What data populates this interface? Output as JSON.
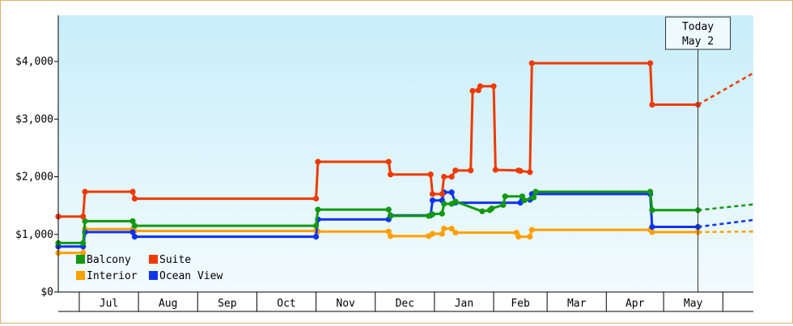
{
  "chart_data": {
    "type": "line",
    "title": "",
    "xlabel": "",
    "ylabel": "",
    "ylim": [
      0,
      4800
    ],
    "y_ticks": [
      {
        "value": 0,
        "label": "$0"
      },
      {
        "value": 1000,
        "label": "$1,000"
      },
      {
        "value": 2000,
        "label": "$2,000"
      },
      {
        "value": 3000,
        "label": "$3,000"
      },
      {
        "value": 4000,
        "label": "$4,000"
      }
    ],
    "x_range": [
      "2025-06-01",
      "2026-05-31"
    ],
    "months": [
      {
        "label": "Jul",
        "start": "2025-06-12",
        "end": "2025-07-13"
      },
      {
        "label": "Aug",
        "start": "2025-07-13",
        "end": "2025-08-13"
      },
      {
        "label": "Sep",
        "start": "2025-08-13",
        "end": "2025-09-13"
      },
      {
        "label": "Oct",
        "start": "2025-09-13",
        "end": "2025-10-14"
      },
      {
        "label": "Nov",
        "start": "2025-10-14",
        "end": "2025-11-14"
      },
      {
        "label": "Dec",
        "start": "2025-11-14",
        "end": "2025-12-15"
      },
      {
        "label": "Jan",
        "start": "2025-12-15",
        "end": "2026-01-15"
      },
      {
        "label": "Feb",
        "start": "2026-01-15",
        "end": "2026-02-12"
      },
      {
        "label": "Mar",
        "start": "2026-02-12",
        "end": "2026-03-15"
      },
      {
        "label": "Apr",
        "start": "2026-03-15",
        "end": "2026-04-14"
      },
      {
        "label": "May",
        "start": "2026-04-14",
        "end": "2026-05-15"
      }
    ],
    "today": {
      "label_line1": "Today",
      "label_line2": "May 2",
      "date": "2026-05-02"
    },
    "legend_position": "bottom-left",
    "series": [
      {
        "name": "Balcony",
        "color": "#119911",
        "points": [
          [
            "2025-06-01",
            850
          ],
          [
            "2025-06-14",
            850
          ],
          [
            "2025-06-15",
            1230
          ],
          [
            "2025-07-10",
            1230
          ],
          [
            "2025-07-11",
            1150
          ],
          [
            "2025-10-14",
            1150
          ],
          [
            "2025-10-15",
            1430
          ],
          [
            "2025-11-21",
            1430
          ],
          [
            "2025-11-22",
            1320
          ],
          [
            "2025-12-12",
            1320
          ],
          [
            "2025-12-14",
            1350
          ],
          [
            "2025-12-19",
            1360
          ],
          [
            "2025-12-20",
            1530
          ],
          [
            "2025-12-24",
            1530
          ],
          [
            "2025-12-26",
            1570
          ],
          [
            "2026-01-09",
            1400
          ],
          [
            "2026-01-13",
            1420
          ],
          [
            "2026-01-14",
            1450
          ],
          [
            "2026-01-20",
            1510
          ],
          [
            "2026-01-21",
            1660
          ],
          [
            "2026-01-30",
            1660
          ],
          [
            "2026-01-31",
            1590
          ],
          [
            "2026-02-05",
            1640
          ],
          [
            "2026-02-06",
            1740
          ],
          [
            "2026-04-07",
            1740
          ],
          [
            "2026-04-08",
            1420
          ],
          [
            "2026-05-02",
            1420
          ]
        ],
        "projection": [
          [
            "2026-05-02",
            1420
          ],
          [
            "2026-05-31",
            1520
          ]
        ]
      },
      {
        "name": "Suite",
        "color": "#ee3a00",
        "points": [
          [
            "2025-06-01",
            1310
          ],
          [
            "2025-06-14",
            1310
          ],
          [
            "2025-06-15",
            1740
          ],
          [
            "2025-07-10",
            1740
          ],
          [
            "2025-07-11",
            1620
          ],
          [
            "2025-10-14",
            1620
          ],
          [
            "2025-10-15",
            2260
          ],
          [
            "2025-11-21",
            2260
          ],
          [
            "2025-11-22",
            2040
          ],
          [
            "2025-12-13",
            2040
          ],
          [
            "2025-12-14",
            1700
          ],
          [
            "2025-12-19",
            1700
          ],
          [
            "2025-12-20",
            2000
          ],
          [
            "2025-12-24",
            2000
          ],
          [
            "2025-12-26",
            2110
          ],
          [
            "2026-01-03",
            2110
          ],
          [
            "2026-01-04",
            3490
          ],
          [
            "2026-01-07",
            3500
          ],
          [
            "2026-01-08",
            3570
          ],
          [
            "2026-01-15",
            3570
          ],
          [
            "2026-01-16",
            2120
          ],
          [
            "2026-01-28",
            2110
          ],
          [
            "2026-01-29",
            2100
          ],
          [
            "2026-02-03",
            2080
          ],
          [
            "2026-02-04",
            3970
          ],
          [
            "2026-04-07",
            3970
          ],
          [
            "2026-04-08",
            3250
          ],
          [
            "2026-05-02",
            3250
          ]
        ],
        "projection": [
          [
            "2026-05-02",
            3250
          ],
          [
            "2026-05-31",
            3800
          ]
        ]
      },
      {
        "name": "Interior",
        "color": "#ffa000",
        "points": [
          [
            "2025-06-01",
            680
          ],
          [
            "2025-06-14",
            680
          ],
          [
            "2025-06-15",
            1090
          ],
          [
            "2025-07-10",
            1090
          ],
          [
            "2025-07-11",
            1060
          ],
          [
            "2025-10-14",
            1060
          ],
          [
            "2025-10-15",
            1050
          ],
          [
            "2025-11-21",
            1050
          ],
          [
            "2025-11-22",
            970
          ],
          [
            "2025-12-12",
            970
          ],
          [
            "2025-12-14",
            1010
          ],
          [
            "2025-12-19",
            1010
          ],
          [
            "2025-12-20",
            1100
          ],
          [
            "2025-12-24",
            1100
          ],
          [
            "2025-12-26",
            1030
          ],
          [
            "2026-01-27",
            1030
          ],
          [
            "2026-01-28",
            960
          ],
          [
            "2026-02-03",
            960
          ],
          [
            "2026-02-04",
            1080
          ],
          [
            "2026-04-07",
            1080
          ],
          [
            "2026-04-08",
            1040
          ],
          [
            "2026-05-02",
            1040
          ]
        ],
        "projection": [
          [
            "2026-05-02",
            1040
          ],
          [
            "2026-05-31",
            1050
          ]
        ]
      },
      {
        "name": "Ocean View",
        "color": "#1133ee",
        "points": [
          [
            "2025-06-01",
            790
          ],
          [
            "2025-06-14",
            790
          ],
          [
            "2025-06-15",
            1040
          ],
          [
            "2025-07-10",
            1040
          ],
          [
            "2025-07-11",
            960
          ],
          [
            "2025-10-14",
            960
          ],
          [
            "2025-10-15",
            1260
          ],
          [
            "2025-11-21",
            1260
          ],
          [
            "2025-11-22",
            1330
          ],
          [
            "2025-12-13",
            1330
          ],
          [
            "2025-12-14",
            1590
          ],
          [
            "2025-12-19",
            1590
          ],
          [
            "2025-12-20",
            1730
          ],
          [
            "2025-12-24",
            1730
          ],
          [
            "2025-12-26",
            1550
          ],
          [
            "2026-01-29",
            1550
          ],
          [
            "2026-01-30",
            1600
          ],
          [
            "2026-02-03",
            1600
          ],
          [
            "2026-02-04",
            1700
          ],
          [
            "2026-04-07",
            1700
          ],
          [
            "2026-04-08",
            1130
          ],
          [
            "2026-05-02",
            1130
          ]
        ],
        "projection": [
          [
            "2026-05-02",
            1130
          ],
          [
            "2026-05-31",
            1250
          ]
        ]
      }
    ]
  }
}
